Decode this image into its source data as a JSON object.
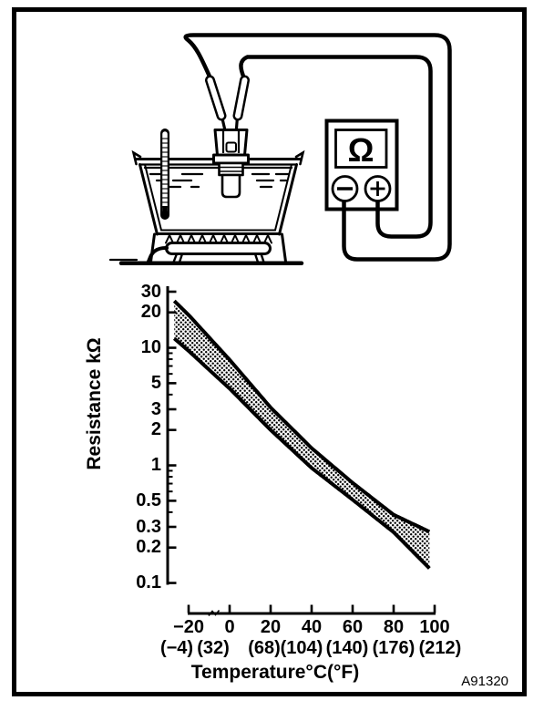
{
  "figure_code": "A91320",
  "apparatus": {
    "meter_symbol": "Ω",
    "terminal_minus": "−",
    "terminal_plus": "+",
    "parts": [
      "water-bath",
      "thermometer",
      "temperature-sensor",
      "test-probes",
      "ohmmeter",
      "burner"
    ]
  },
  "chart": {
    "y_axis_label": "Resistance kΩ",
    "x_axis_label": "Temperature°C(°F)",
    "y_ticks": [
      "30",
      "20",
      "10",
      "5",
      "3",
      "2",
      "1",
      "0.5",
      "0.3",
      "0.2",
      "0.1"
    ],
    "x_ticks_c": [
      "−20",
      "0",
      "20",
      "40",
      "60",
      "80",
      "100"
    ],
    "x_ticks_f": [
      "(−4)",
      "(32)",
      "(68)",
      "(104)",
      "(140)",
      "(176)",
      "(212)"
    ]
  },
  "chart_data": {
    "type": "area",
    "title": "",
    "xlabel": "Temperature°C(°F)",
    "ylabel": "Resistance kΩ",
    "y_scale": "log",
    "ylim": [
      0.1,
      30
    ],
    "xlim": [
      -20,
      100
    ],
    "grid": false,
    "legend": "none",
    "x": [
      -20,
      0,
      20,
      40,
      60,
      80,
      100
    ],
    "x_secondary_f": [
      -4,
      32,
      68,
      104,
      140,
      176,
      212
    ],
    "series": [
      {
        "name": "upper limit",
        "values": [
          19,
          7.9,
          3.1,
          1.4,
          0.71,
          0.38,
          0.26
        ]
      },
      {
        "name": "lower limit",
        "values": [
          9.4,
          4.5,
          2.0,
          0.95,
          0.51,
          0.27,
          0.12
        ]
      }
    ],
    "band_left_edge": {
      "t": -27,
      "upper": 25,
      "lower": 12
    },
    "y_minor_ticks": [
      9,
      8,
      7,
      6,
      4,
      0.9,
      0.8,
      0.7,
      0.6,
      0.4
    ],
    "band_fill": "stipple-dots",
    "color": "#000000"
  }
}
